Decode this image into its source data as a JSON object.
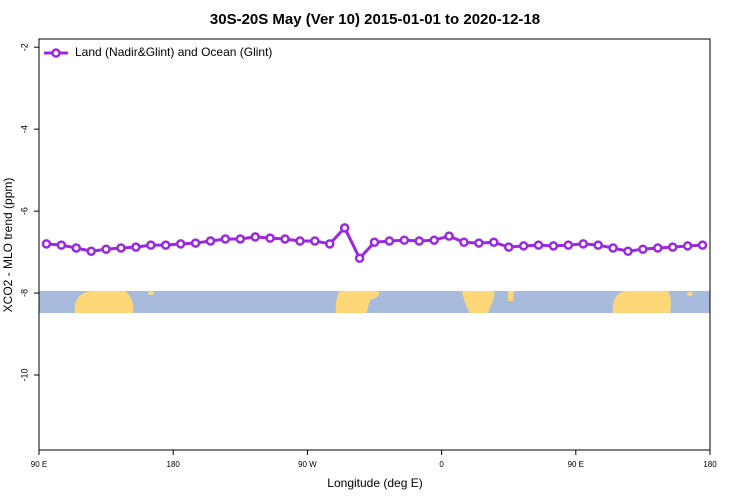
{
  "chart_data": {
    "type": "line",
    "title": "30S-20S May (Ver 10)   2015-01-01 to 2020-12-18",
    "x_label": "Longitude (deg E)",
    "y_label": "XCO2 - MLO trend (ppm)",
    "x": [
      95,
      105,
      115,
      125,
      135,
      145,
      155,
      165,
      175,
      185,
      195,
      205,
      215,
      225,
      235,
      245,
      255,
      265,
      275,
      285,
      295,
      305,
      315,
      325,
      335,
      345,
      355,
      365,
      375,
      385,
      395,
      405,
      415,
      425,
      435,
      445,
      455,
      465,
      475,
      485,
      495,
      505,
      515,
      525,
      535
    ],
    "series": [
      {
        "name": "Land (Nadir&Glint) and Ocean (Glint)",
        "color": "#9b27e0",
        "values": [
          -6.8,
          -6.83,
          -6.9,
          -6.98,
          -6.93,
          -6.9,
          -6.88,
          -6.83,
          -6.83,
          -6.8,
          -6.78,
          -6.73,
          -6.68,
          -6.68,
          -6.63,
          -6.66,
          -6.68,
          -6.73,
          -6.73,
          -6.8,
          -6.41,
          -7.15,
          -6.76,
          -6.73,
          -6.71,
          -6.73,
          -6.71,
          -6.61,
          -6.76,
          -6.78,
          -6.76,
          -6.88,
          -6.85,
          -6.83,
          -6.85,
          -6.83,
          -6.8,
          -6.83,
          -6.9,
          -6.98,
          -6.93,
          -6.9,
          -6.88,
          -6.85,
          -6.83
        ]
      }
    ],
    "xlim": [
      90,
      540
    ],
    "xticks": [
      {
        "value": 90,
        "label": "90 E"
      },
      180,
      {
        "value": 270,
        "label": "90 W"
      },
      {
        "value": 360,
        "label": "0"
      },
      {
        "value": 450,
        "label": "90 E"
      },
      {
        "value": 540,
        "label": "180"
      }
    ],
    "ylim": [
      -11.83,
      -1.8
    ],
    "yticks": [
      -2,
      -4,
      -6,
      -8,
      -10
    ],
    "legend": "upper left",
    "grid": false
  }
}
